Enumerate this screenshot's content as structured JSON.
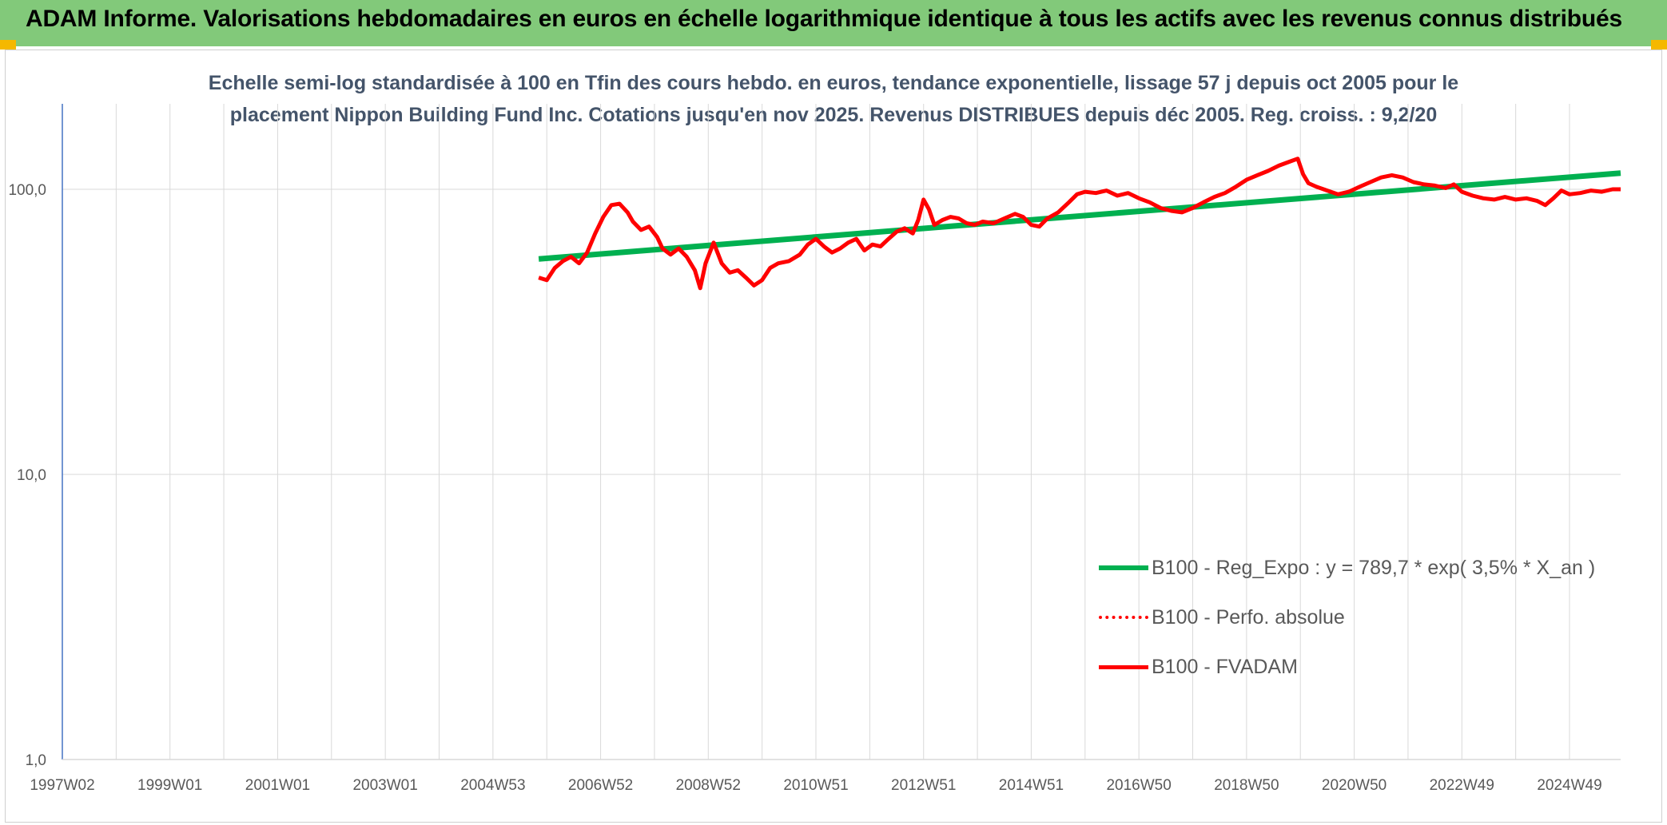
{
  "header": {
    "title": "ADAM Informe. Valorisations hebdomadaires en euros en échelle logarithmique identique à tous les actifs avec les revenus connus distribués"
  },
  "colors": {
    "header_bg": "#82c97a",
    "regression": "#00b050",
    "fvadam": "#ff0000",
    "perfo": "#ff0000",
    "title_text": "#44546a",
    "axis_text": "#595959",
    "grid": "#d9d9d9"
  },
  "chart_data": {
    "type": "line",
    "title_line1": "Echelle semi-log standardisée à 100 en Tfin des cours hebdo. en euros, tendance exponentielle, lissage 57 j depuis oct 2005 pour le",
    "title_line2": "placement Nippon Building Fund Inc. Cotations jusqu'en nov 2025. Revenus DISTRIBUES depuis déc 2005. Reg. croiss. : 9,2/20",
    "y_scale": "log",
    "ylim": [
      1,
      200
    ],
    "y_ticks": [
      {
        "value": 1,
        "label": "1,0"
      },
      {
        "value": 10,
        "label": "10,0"
      },
      {
        "value": 100,
        "label": "100,0"
      }
    ],
    "xlim": [
      1997.0,
      2025.95
    ],
    "x_ticks": [
      {
        "value": 1997.0,
        "label": "1997W02"
      },
      {
        "value": 1999.0,
        "label": "1999W01"
      },
      {
        "value": 2001.0,
        "label": "2001W01"
      },
      {
        "value": 2003.0,
        "label": "2003W01"
      },
      {
        "value": 2005.0,
        "label": "2004W53"
      },
      {
        "value": 2007.0,
        "label": "2006W52"
      },
      {
        "value": 2009.0,
        "label": "2008W52"
      },
      {
        "value": 2011.0,
        "label": "2010W51"
      },
      {
        "value": 2013.0,
        "label": "2012W51"
      },
      {
        "value": 2015.0,
        "label": "2014W51"
      },
      {
        "value": 2017.0,
        "label": "2016W50"
      },
      {
        "value": 2019.0,
        "label": "2018W50"
      },
      {
        "value": 2021.0,
        "label": "2020W50"
      },
      {
        "value": 2023.0,
        "label": "2022W49"
      },
      {
        "value": 2025.0,
        "label": "2024W49"
      }
    ],
    "legend_position": "bottom-right",
    "grid": true,
    "series": [
      {
        "name": "B100 - Reg_Expo : y = 789,7 * exp( 3,5% *  X_an )",
        "style": "solid-thick",
        "color": "#00b050",
        "points": [
          [
            2005.85,
            57
          ],
          [
            2025.95,
            114
          ]
        ]
      },
      {
        "name": "B100 - Perfo. absolue",
        "style": "dotted",
        "color": "#ff0000",
        "points": []
      },
      {
        "name": "B100 - FVADAM",
        "style": "solid",
        "color": "#ff0000",
        "points": [
          [
            2005.85,
            49
          ],
          [
            2006.0,
            48
          ],
          [
            2006.15,
            53
          ],
          [
            2006.3,
            56
          ],
          [
            2006.45,
            58
          ],
          [
            2006.6,
            55
          ],
          [
            2006.75,
            60
          ],
          [
            2006.9,
            70
          ],
          [
            2007.05,
            80
          ],
          [
            2007.2,
            88
          ],
          [
            2007.35,
            89
          ],
          [
            2007.5,
            83
          ],
          [
            2007.6,
            77
          ],
          [
            2007.75,
            72
          ],
          [
            2007.9,
            74
          ],
          [
            2008.05,
            68
          ],
          [
            2008.15,
            62
          ],
          [
            2008.3,
            59
          ],
          [
            2008.45,
            62
          ],
          [
            2008.6,
            58
          ],
          [
            2008.75,
            52
          ],
          [
            2008.85,
            45
          ],
          [
            2008.95,
            55
          ],
          [
            2009.1,
            65
          ],
          [
            2009.25,
            55
          ],
          [
            2009.4,
            51
          ],
          [
            2009.55,
            52
          ],
          [
            2009.7,
            49
          ],
          [
            2009.85,
            46
          ],
          [
            2010.0,
            48
          ],
          [
            2010.15,
            53
          ],
          [
            2010.3,
            55
          ],
          [
            2010.5,
            56
          ],
          [
            2010.7,
            59
          ],
          [
            2010.85,
            64
          ],
          [
            2011.0,
            67
          ],
          [
            2011.15,
            63
          ],
          [
            2011.3,
            60
          ],
          [
            2011.45,
            62
          ],
          [
            2011.6,
            65
          ],
          [
            2011.75,
            67
          ],
          [
            2011.9,
            61
          ],
          [
            2012.05,
            64
          ],
          [
            2012.2,
            63
          ],
          [
            2012.35,
            67
          ],
          [
            2012.5,
            71
          ],
          [
            2012.65,
            73
          ],
          [
            2012.8,
            70
          ],
          [
            2012.9,
            78
          ],
          [
            2013.0,
            92
          ],
          [
            2013.1,
            85
          ],
          [
            2013.2,
            75
          ],
          [
            2013.35,
            78
          ],
          [
            2013.5,
            80
          ],
          [
            2013.65,
            79
          ],
          [
            2013.8,
            76
          ],
          [
            2013.95,
            75
          ],
          [
            2014.1,
            77
          ],
          [
            2014.3,
            76
          ],
          [
            2014.5,
            79
          ],
          [
            2014.7,
            82
          ],
          [
            2014.85,
            80
          ],
          [
            2015.0,
            75
          ],
          [
            2015.15,
            74
          ],
          [
            2015.3,
            79
          ],
          [
            2015.5,
            83
          ],
          [
            2015.7,
            90
          ],
          [
            2015.85,
            96
          ],
          [
            2016.0,
            98
          ],
          [
            2016.2,
            97
          ],
          [
            2016.4,
            99
          ],
          [
            2016.6,
            95
          ],
          [
            2016.8,
            97
          ],
          [
            2017.0,
            93
          ],
          [
            2017.2,
            90
          ],
          [
            2017.4,
            86
          ],
          [
            2017.6,
            84
          ],
          [
            2017.8,
            83
          ],
          [
            2018.0,
            86
          ],
          [
            2018.2,
            90
          ],
          [
            2018.4,
            94
          ],
          [
            2018.6,
            97
          ],
          [
            2018.8,
            102
          ],
          [
            2019.0,
            108
          ],
          [
            2019.2,
            112
          ],
          [
            2019.4,
            116
          ],
          [
            2019.6,
            121
          ],
          [
            2019.8,
            125
          ],
          [
            2019.95,
            128
          ],
          [
            2020.05,
            113
          ],
          [
            2020.15,
            105
          ],
          [
            2020.3,
            102
          ],
          [
            2020.5,
            99
          ],
          [
            2020.7,
            96
          ],
          [
            2020.9,
            98
          ],
          [
            2021.1,
            102
          ],
          [
            2021.3,
            106
          ],
          [
            2021.5,
            110
          ],
          [
            2021.7,
            112
          ],
          [
            2021.9,
            110
          ],
          [
            2022.1,
            106
          ],
          [
            2022.3,
            104
          ],
          [
            2022.5,
            103
          ],
          [
            2022.7,
            101
          ],
          [
            2022.85,
            104
          ],
          [
            2023.0,
            98
          ],
          [
            2023.2,
            95
          ],
          [
            2023.4,
            93
          ],
          [
            2023.6,
            92
          ],
          [
            2023.8,
            94
          ],
          [
            2024.0,
            92
          ],
          [
            2024.2,
            93
          ],
          [
            2024.4,
            91
          ],
          [
            2024.55,
            88
          ],
          [
            2024.7,
            93
          ],
          [
            2024.85,
            99
          ],
          [
            2025.0,
            96
          ],
          [
            2025.2,
            97
          ],
          [
            2025.4,
            99
          ],
          [
            2025.6,
            98
          ],
          [
            2025.8,
            100
          ],
          [
            2025.95,
            100
          ]
        ]
      }
    ]
  }
}
